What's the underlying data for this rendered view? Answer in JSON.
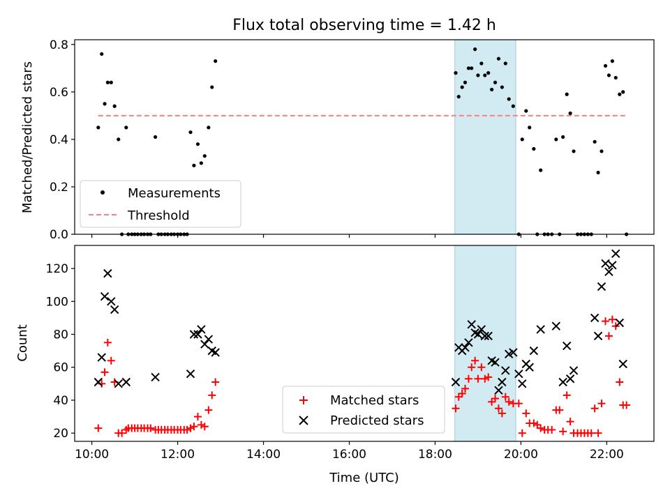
{
  "chart_data": {
    "type": "scatter",
    "title": "Flux total observing time = 1.42 h",
    "xlabel": "Time (UTC)",
    "x_unit": "hours UTC",
    "x_ticks": [
      "10:00",
      "12:00",
      "14:00",
      "16:00",
      "18:00",
      "20:00",
      "22:00"
    ],
    "x_tick_values": [
      10,
      12,
      14,
      16,
      18,
      20,
      22
    ],
    "xlim": [
      9.6,
      23.1
    ],
    "shaded_interval": [
      18.46,
      19.88
    ],
    "shaded_color": "#add8e6",
    "top": {
      "ylabel": "Matched/Predicted stars",
      "ylim": [
        0,
        0.82
      ],
      "y_ticks": [
        "0.0",
        "0.2",
        "0.4",
        "0.6",
        "0.8"
      ],
      "y_tick_values": [
        0,
        0.2,
        0.4,
        0.6,
        0.8
      ],
      "legend_position": "lower-left",
      "series": [
        {
          "name": "Measurements",
          "kind": "dot",
          "color": "#000000",
          "points": [
            [
              10.15,
              0.45
            ],
            [
              10.23,
              0.76
            ],
            [
              10.3,
              0.55
            ],
            [
              10.37,
              0.64
            ],
            [
              10.45,
              0.64
            ],
            [
              10.53,
              0.54
            ],
            [
              10.62,
              0.4
            ],
            [
              10.7,
              0.0
            ],
            [
              10.8,
              0.45
            ],
            [
              10.85,
              0.0
            ],
            [
              10.93,
              0.0
            ],
            [
              11.0,
              0.0
            ],
            [
              11.07,
              0.0
            ],
            [
              11.15,
              0.0
            ],
            [
              11.22,
              0.0
            ],
            [
              11.3,
              0.0
            ],
            [
              11.37,
              0.0
            ],
            [
              11.48,
              0.41
            ],
            [
              11.55,
              0.0
            ],
            [
              11.62,
              0.0
            ],
            [
              11.7,
              0.0
            ],
            [
              11.77,
              0.0
            ],
            [
              11.85,
              0.0
            ],
            [
              11.92,
              0.0
            ],
            [
              12.0,
              0.0
            ],
            [
              12.07,
              0.0
            ],
            [
              12.15,
              0.0
            ],
            [
              12.22,
              0.0
            ],
            [
              12.3,
              0.43
            ],
            [
              12.38,
              0.29
            ],
            [
              12.47,
              0.38
            ],
            [
              12.55,
              0.3
            ],
            [
              12.63,
              0.33
            ],
            [
              12.72,
              0.45
            ],
            [
              12.8,
              0.62
            ],
            [
              12.88,
              0.73
            ],
            [
              18.48,
              0.68
            ],
            [
              18.55,
              0.58
            ],
            [
              18.63,
              0.62
            ],
            [
              18.7,
              0.64
            ],
            [
              18.78,
              0.7
            ],
            [
              18.85,
              0.7
            ],
            [
              18.93,
              0.78
            ],
            [
              19.0,
              0.67
            ],
            [
              19.08,
              0.72
            ],
            [
              19.16,
              0.67
            ],
            [
              19.24,
              0.68
            ],
            [
              19.32,
              0.61
            ],
            [
              19.4,
              0.64
            ],
            [
              19.48,
              0.74
            ],
            [
              19.56,
              0.62
            ],
            [
              19.64,
              0.72
            ],
            [
              19.72,
              0.57
            ],
            [
              19.82,
              0.54
            ],
            [
              19.95,
              0.0
            ],
            [
              20.03,
              0.4
            ],
            [
              20.12,
              0.52
            ],
            [
              20.2,
              0.45
            ],
            [
              20.3,
              0.36
            ],
            [
              20.38,
              0.0
            ],
            [
              20.46,
              0.27
            ],
            [
              20.55,
              0.0
            ],
            [
              20.63,
              0.0
            ],
            [
              20.72,
              0.0
            ],
            [
              20.82,
              0.4
            ],
            [
              20.9,
              0.0
            ],
            [
              20.98,
              0.41
            ],
            [
              21.07,
              0.59
            ],
            [
              21.15,
              0.51
            ],
            [
              21.23,
              0.35
            ],
            [
              21.32,
              0.0
            ],
            [
              21.4,
              0.0
            ],
            [
              21.48,
              0.0
            ],
            [
              21.56,
              0.0
            ],
            [
              21.64,
              0.0
            ],
            [
              21.72,
              0.39
            ],
            [
              21.8,
              0.26
            ],
            [
              21.88,
              0.35
            ],
            [
              21.97,
              0.71
            ],
            [
              22.05,
              0.67
            ],
            [
              22.13,
              0.73
            ],
            [
              22.21,
              0.66
            ],
            [
              22.3,
              0.59
            ],
            [
              22.38,
              0.6
            ],
            [
              22.46,
              0.0
            ]
          ]
        },
        {
          "name": "Threshold",
          "kind": "dashed-line",
          "color": "#ff7f7f",
          "points": [
            [
              10.15,
              0.5
            ],
            [
              22.46,
              0.5
            ]
          ]
        }
      ]
    },
    "bottom": {
      "ylabel": "Count",
      "ylim": [
        15,
        134
      ],
      "y_ticks": [
        "20",
        "40",
        "60",
        "80",
        "100",
        "120"
      ],
      "y_tick_values": [
        20,
        40,
        60,
        80,
        100,
        120
      ],
      "legend_position": "lower-center",
      "series": [
        {
          "name": "Matched stars",
          "kind": "plus",
          "color": "#ff0000",
          "points": [
            [
              10.15,
              23
            ],
            [
              10.23,
              50
            ],
            [
              10.3,
              57
            ],
            [
              10.37,
              75
            ],
            [
              10.45,
              64
            ],
            [
              10.53,
              51
            ],
            [
              10.62,
              20
            ],
            [
              10.7,
              20
            ],
            [
              10.8,
              22
            ],
            [
              10.85,
              23
            ],
            [
              10.93,
              23
            ],
            [
              11.0,
              23
            ],
            [
              11.07,
              23
            ],
            [
              11.15,
              23
            ],
            [
              11.22,
              23
            ],
            [
              11.3,
              23
            ],
            [
              11.37,
              23
            ],
            [
              11.48,
              22
            ],
            [
              11.55,
              22
            ],
            [
              11.62,
              22
            ],
            [
              11.7,
              22
            ],
            [
              11.77,
              22
            ],
            [
              11.85,
              22
            ],
            [
              11.92,
              22
            ],
            [
              12.0,
              22
            ],
            [
              12.07,
              22
            ],
            [
              12.15,
              22
            ],
            [
              12.22,
              22
            ],
            [
              12.3,
              23
            ],
            [
              12.38,
              24
            ],
            [
              12.47,
              30
            ],
            [
              12.55,
              25
            ],
            [
              12.63,
              24
            ],
            [
              12.72,
              34
            ],
            [
              12.8,
              43
            ],
            [
              12.88,
              51
            ],
            [
              18.48,
              35
            ],
            [
              18.55,
              42
            ],
            [
              18.63,
              44
            ],
            [
              18.7,
              47
            ],
            [
              18.78,
              53
            ],
            [
              18.85,
              60
            ],
            [
              18.93,
              64
            ],
            [
              19.0,
              53
            ],
            [
              19.08,
              60
            ],
            [
              19.16,
              53
            ],
            [
              19.24,
              54
            ],
            [
              19.32,
              39
            ],
            [
              19.4,
              41
            ],
            [
              19.48,
              35
            ],
            [
              19.56,
              32
            ],
            [
              19.64,
              42
            ],
            [
              19.72,
              39
            ],
            [
              19.82,
              38
            ],
            [
              19.95,
              38
            ],
            [
              20.03,
              20
            ],
            [
              20.12,
              32
            ],
            [
              20.2,
              26
            ],
            [
              20.3,
              26
            ],
            [
              20.38,
              25
            ],
            [
              20.46,
              23
            ],
            [
              20.55,
              22
            ],
            [
              20.63,
              22
            ],
            [
              20.72,
              22
            ],
            [
              20.82,
              34
            ],
            [
              20.9,
              34
            ],
            [
              20.98,
              21
            ],
            [
              21.07,
              43
            ],
            [
              21.15,
              27
            ],
            [
              21.23,
              20
            ],
            [
              21.32,
              20
            ],
            [
              21.4,
              20
            ],
            [
              21.48,
              20
            ],
            [
              21.56,
              20
            ],
            [
              21.64,
              20
            ],
            [
              21.72,
              35
            ],
            [
              21.8,
              20
            ],
            [
              21.88,
              38
            ],
            [
              21.97,
              88
            ],
            [
              22.05,
              79
            ],
            [
              22.13,
              89
            ],
            [
              22.21,
              85
            ],
            [
              22.3,
              51
            ],
            [
              22.38,
              37
            ],
            [
              22.46,
              37
            ]
          ]
        },
        {
          "name": "Predicted stars",
          "kind": "cross",
          "color": "#000000",
          "points": [
            [
              10.15,
              51
            ],
            [
              10.23,
              66
            ],
            [
              10.3,
              103
            ],
            [
              10.37,
              117
            ],
            [
              10.45,
              100
            ],
            [
              10.53,
              95
            ],
            [
              10.62,
              50
            ],
            [
              10.8,
              51
            ],
            [
              11.48,
              54
            ],
            [
              12.3,
              56
            ],
            [
              12.38,
              80
            ],
            [
              12.47,
              80
            ],
            [
              12.55,
              83
            ],
            [
              12.63,
              74
            ],
            [
              12.72,
              77
            ],
            [
              12.8,
              70
            ],
            [
              12.88,
              69
            ],
            [
              18.48,
              51
            ],
            [
              18.55,
              72
            ],
            [
              18.63,
              70
            ],
            [
              18.7,
              72
            ],
            [
              18.78,
              75
            ],
            [
              18.85,
              86
            ],
            [
              18.93,
              81
            ],
            [
              19.0,
              80
            ],
            [
              19.08,
              83
            ],
            [
              19.16,
              79
            ],
            [
              19.24,
              79
            ],
            [
              19.32,
              64
            ],
            [
              19.4,
              63
            ],
            [
              19.48,
              46
            ],
            [
              19.56,
              51
            ],
            [
              19.64,
              58
            ],
            [
              19.72,
              68
            ],
            [
              19.82,
              69
            ],
            [
              19.95,
              56
            ],
            [
              20.03,
              50
            ],
            [
              20.12,
              62
            ],
            [
              20.2,
              60
            ],
            [
              20.3,
              70
            ],
            [
              20.46,
              83
            ],
            [
              20.82,
              85
            ],
            [
              20.98,
              51
            ],
            [
              21.07,
              73
            ],
            [
              21.15,
              53
            ],
            [
              21.23,
              58
            ],
            [
              21.72,
              90
            ],
            [
              21.8,
              79
            ],
            [
              21.88,
              109
            ],
            [
              21.97,
              123
            ],
            [
              22.05,
              118
            ],
            [
              22.13,
              122
            ],
            [
              22.21,
              129
            ],
            [
              22.3,
              87
            ],
            [
              22.38,
              62
            ]
          ]
        }
      ]
    }
  }
}
